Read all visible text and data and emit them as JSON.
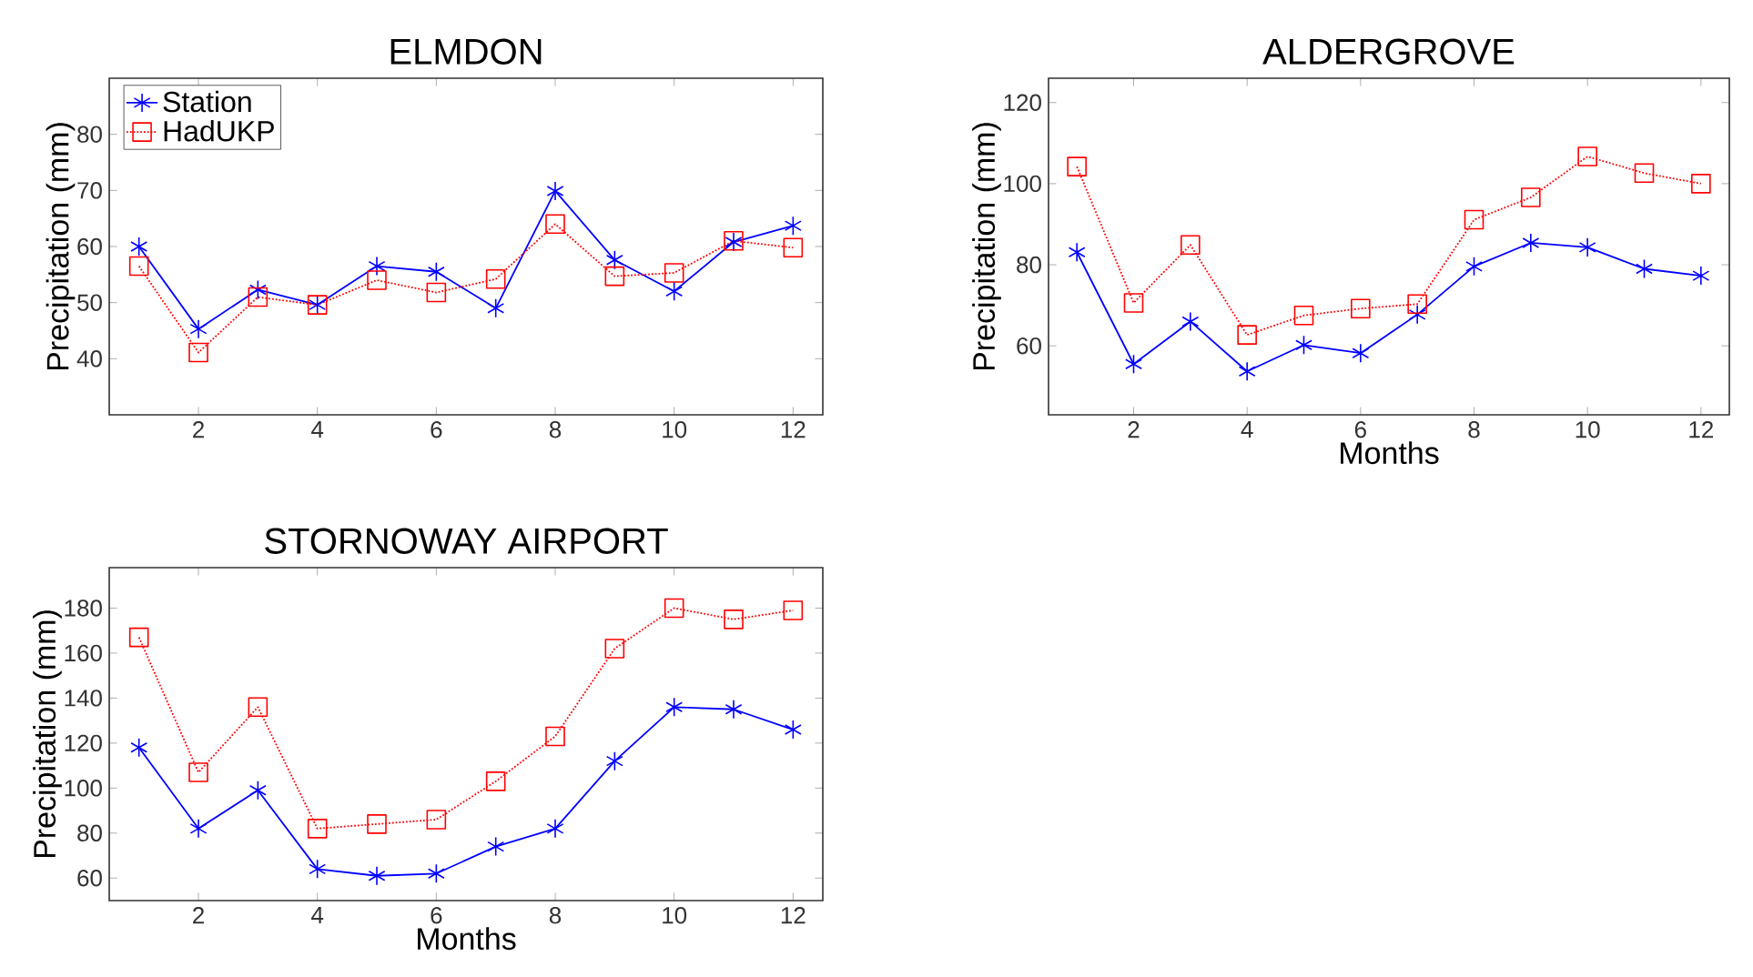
{
  "chart_data": [
    {
      "type": "line",
      "title": "ELMDON",
      "ylabel": "Precipitation (mm)",
      "x": [
        1,
        2,
        3,
        4,
        5,
        6,
        7,
        8,
        9,
        10,
        11,
        12
      ],
      "xlim": [
        0.5,
        12.5
      ],
      "xticks": [
        2,
        4,
        6,
        8,
        10,
        12
      ],
      "ylim": [
        30,
        90
      ],
      "yticks": [
        40,
        50,
        60,
        70,
        80
      ],
      "grid": false,
      "legend": "top left",
      "series": [
        {
          "name": "Station",
          "color": "#0000ff",
          "marker": "cross",
          "line_style": "solid",
          "values": [
            60,
            45.3,
            52.3,
            49.6,
            56.5,
            55.5,
            49,
            69.9,
            57.6,
            52,
            60.8,
            63.7
          ]
        },
        {
          "name": "HadUKP",
          "color": "#ff0000",
          "marker": "square",
          "line_style": "dotted",
          "values": [
            56.5,
            41.1,
            51,
            49.6,
            54,
            51.8,
            54.2,
            64,
            54.7,
            55.3,
            61,
            59.8
          ]
        }
      ]
    },
    {
      "type": "line",
      "title": "ALDERGROVE",
      "xlabel": "Months",
      "ylabel": "Precipitation (mm)",
      "x": [
        1,
        2,
        3,
        4,
        5,
        6,
        7,
        8,
        9,
        10,
        11,
        12
      ],
      "xlim": [
        0.5,
        12.5
      ],
      "xticks": [
        2,
        4,
        6,
        8,
        10,
        12
      ],
      "ylim": [
        43,
        126
      ],
      "yticks": [
        60,
        80,
        100,
        120
      ],
      "grid": false,
      "series": [
        {
          "color": "#0000ff",
          "marker": "cross",
          "line_style": "solid",
          "values": [
            83.1,
            55.5,
            66,
            53.7,
            60.2,
            58.2,
            67.7,
            79.6,
            85.4,
            84.3,
            79,
            77.3
          ]
        },
        {
          "color": "#ff0000",
          "marker": "square",
          "line_style": "dotted",
          "values": [
            104.2,
            70.6,
            84.9,
            62.7,
            67.5,
            69.2,
            70.3,
            91.1,
            96.6,
            106.7,
            102.6,
            100
          ]
        }
      ]
    },
    {
      "type": "line",
      "title": "STORNOWAY AIRPORT",
      "xlabel": "Months",
      "ylabel": "Precipitation (mm)",
      "x": [
        1,
        2,
        3,
        4,
        5,
        6,
        7,
        8,
        9,
        10,
        11,
        12
      ],
      "xlim": [
        0.5,
        12.5
      ],
      "xticks": [
        2,
        4,
        6,
        8,
        10,
        12
      ],
      "ylim": [
        50,
        198
      ],
      "yticks": [
        60,
        80,
        100,
        120,
        140,
        160,
        180
      ],
      "grid": false,
      "series": [
        {
          "color": "#0000ff",
          "marker": "cross",
          "line_style": "solid",
          "values": [
            118,
            82,
            99,
            64,
            61,
            62,
            74,
            82,
            112,
            136,
            135,
            126
          ]
        },
        {
          "color": "#ff0000",
          "marker": "square",
          "line_style": "dotted",
          "values": [
            167,
            107,
            136,
            82,
            84,
            86,
            103,
            123,
            162,
            180,
            175,
            179
          ]
        }
      ]
    }
  ]
}
